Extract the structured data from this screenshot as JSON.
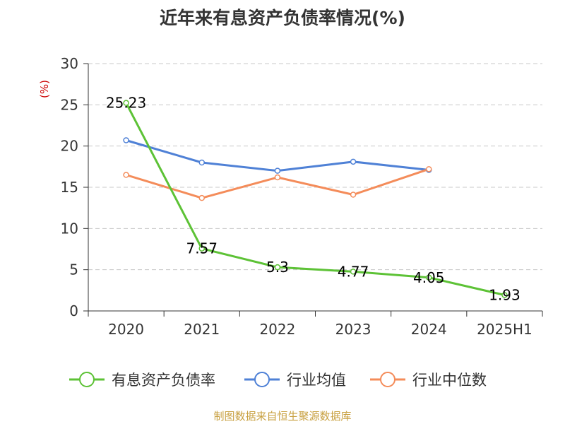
{
  "chart_data": {
    "type": "line",
    "title": "近年来有息资产负债率情况(%)",
    "ylabel": "(%)",
    "categories": [
      "2020",
      "2021",
      "2022",
      "2023",
      "2024",
      "2025H1"
    ],
    "ylim": [
      0,
      30
    ],
    "yticks": [
      "0",
      "5",
      "10",
      "15",
      "20",
      "25",
      "30"
    ],
    "grid": true,
    "legend_position": "bottom",
    "series": [
      {
        "name": "有息资产负债率",
        "color": "#5dc236",
        "values": [
          25.23,
          7.57,
          5.3,
          4.77,
          4.05,
          1.93
        ],
        "labels": [
          "25.23",
          "7.57",
          "5.3",
          "4.77",
          "4.05",
          "1.93"
        ]
      },
      {
        "name": "行业均值",
        "color": "#4f81d6",
        "values": [
          20.7,
          18.0,
          17.0,
          18.1,
          17.1,
          null
        ]
      },
      {
        "name": "行业中位数",
        "color": "#f48c5a",
        "values": [
          16.5,
          13.7,
          16.2,
          14.1,
          17.2,
          null
        ]
      }
    ]
  },
  "source_text": "制图数据来自恒生聚源数据库"
}
